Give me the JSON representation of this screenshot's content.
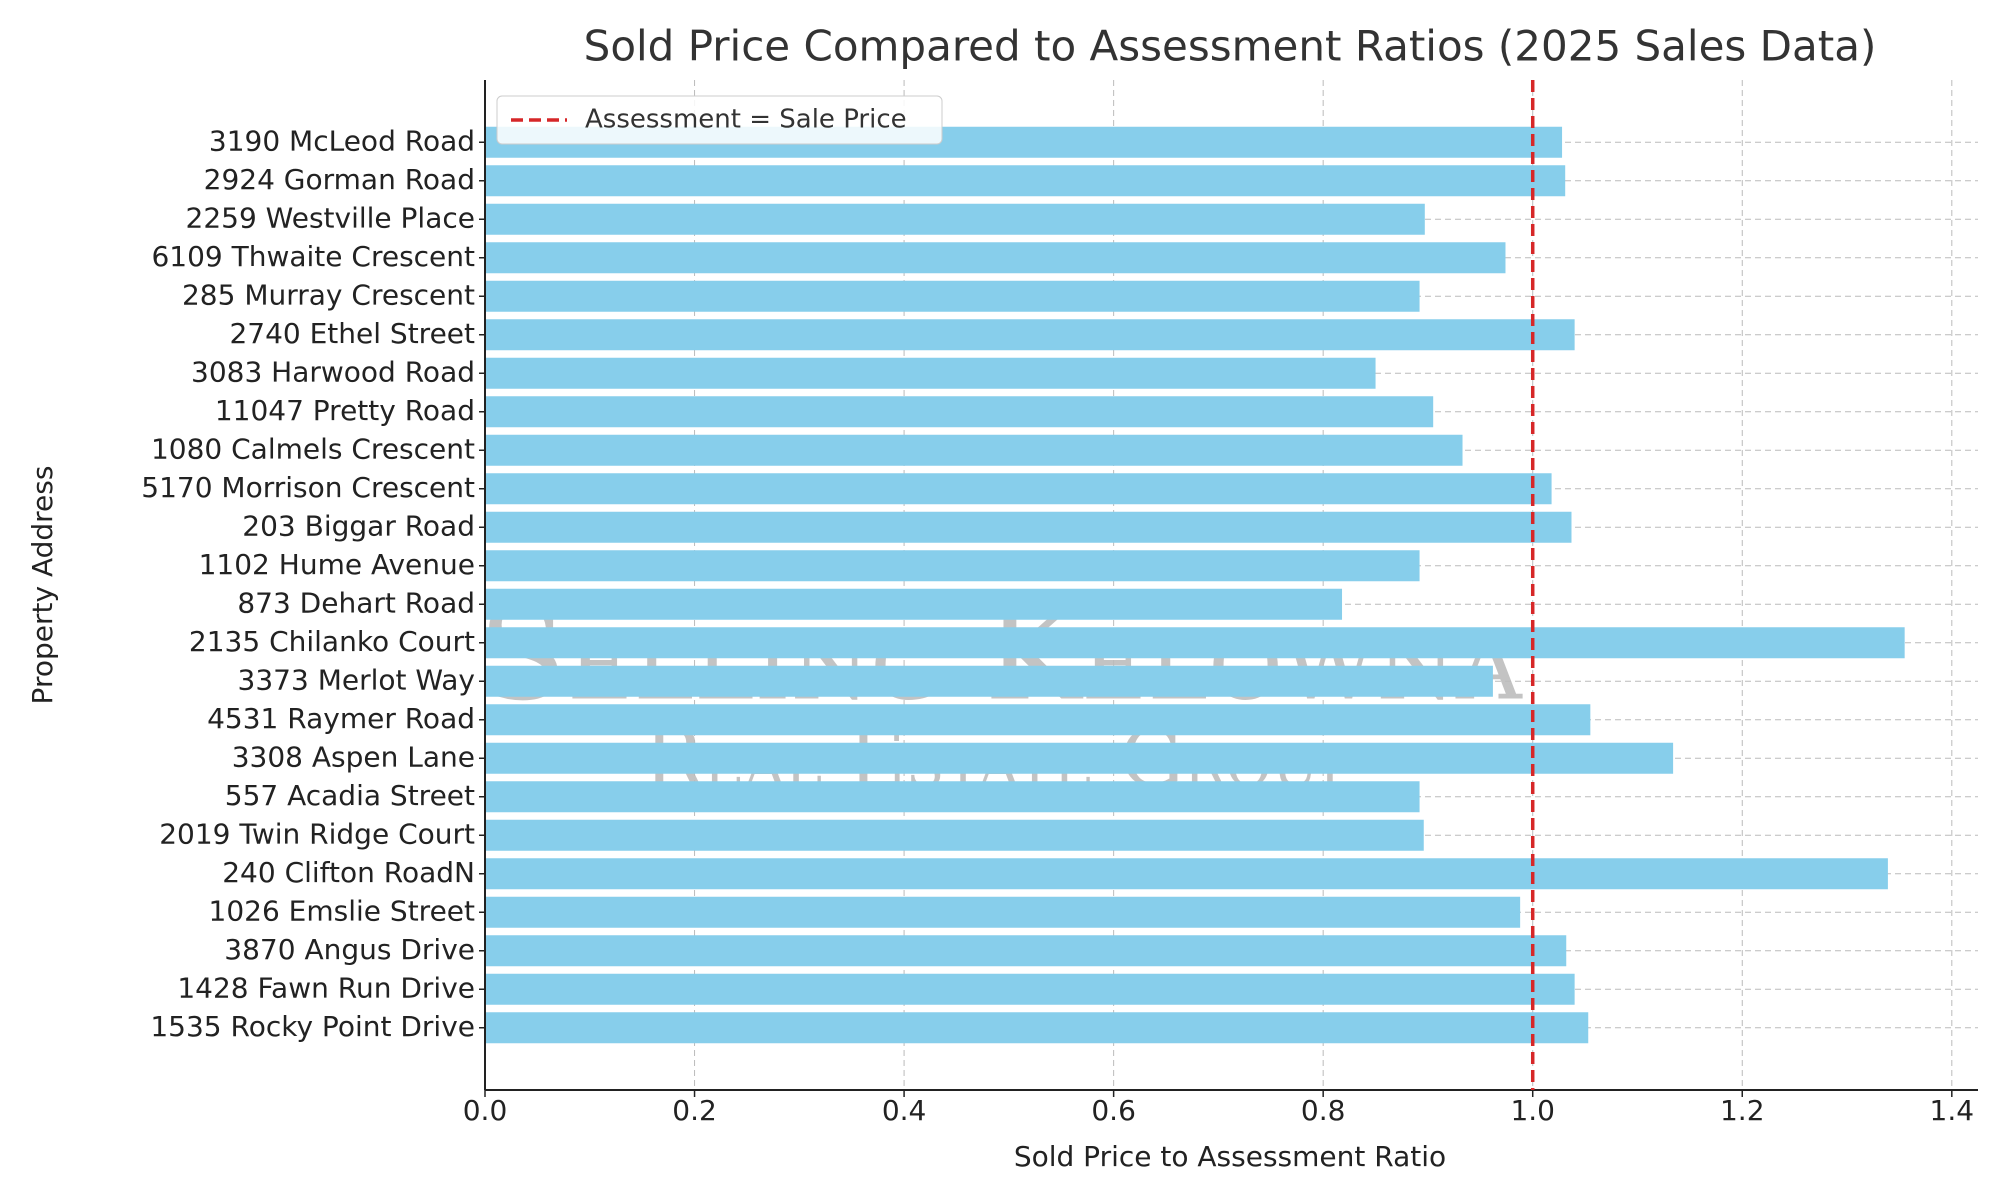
{
  "chart_data": {
    "type": "barh",
    "title": "Sold Price Compared to Assessment Ratios (2025 Sales Data)",
    "x_label": "Sold Price to Assessment Ratio",
    "y_label": "Property Address",
    "categories": [
      "3190 McLeod Road",
      "2924 Gorman Road",
      "2259 Westville Place",
      "6109 Thwaite Crescent",
      "285 Murray Crescent",
      "2740 Ethel Street",
      "3083 Harwood Road",
      "11047 Pretty Road",
      "1080 Calmels Crescent",
      "5170 Morrison Crescent",
      "203 Biggar Road",
      "1102 Hume Avenue",
      "873 Dehart Road",
      "2135 Chilanko Court",
      "3373 Merlot Way",
      "4531 Raymer Road",
      "3308 Aspen Lane",
      "557 Acadia Street",
      "2019 Twin Ridge Court",
      "240 Clifton RoadN",
      "1026 Emslie Street",
      "3870 Angus Drive",
      "1428 Fawn Run Drive",
      "1535 Rocky Point Drive"
    ],
    "values": [
      1.028,
      1.031,
      0.897,
      0.974,
      0.892,
      1.04,
      0.85,
      0.905,
      0.933,
      1.018,
      1.037,
      0.892,
      0.818,
      1.355,
      0.962,
      1.055,
      1.134,
      0.892,
      0.896,
      1.339,
      0.988,
      1.032,
      1.04,
      1.053
    ],
    "color": "#87ceeb",
    "xlim": [
      0,
      1.425
    ],
    "xticks": [
      {
        "value": 0,
        "label": "0.0"
      },
      {
        "value": 0.2,
        "label": "0.2"
      },
      {
        "value": 0.4,
        "label": "0.4"
      },
      {
        "value": 0.6,
        "label": "0.6"
      },
      {
        "value": 0.8,
        "label": "0.8"
      },
      {
        "value": 1,
        "label": "1.0"
      },
      {
        "value": 1.2,
        "label": "1.2"
      },
      {
        "value": 1.4,
        "label": "1.4"
      }
    ],
    "grid": true,
    "reference_line": {
      "value": 1,
      "label": "Assessment = Sale Price",
      "color": "#d62728"
    },
    "legend_position": "upper-left",
    "watermark": {
      "line1": "Selling Kelowna",
      "line2": "Real Estate Group"
    }
  }
}
